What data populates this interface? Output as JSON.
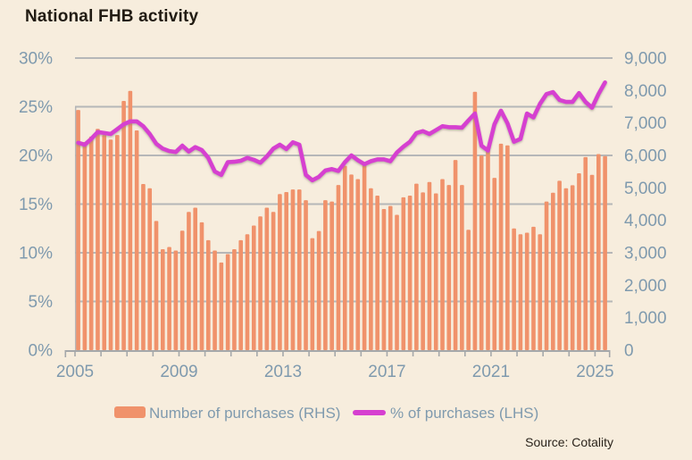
{
  "title": "National FHB activity",
  "source": "Source: Cotality",
  "colors": {
    "background": "#F7EDDD",
    "bar": "#F0926B",
    "line": "#D63FD0",
    "axis_text": "#7F9AAE",
    "grid": "#B0B2B4",
    "axis_line": "#A5A8AA",
    "title_text": "#211B12",
    "source_text": "#2B241C"
  },
  "legend": {
    "items": [
      {
        "label": "Number of purchases (RHS)",
        "swatch": "bar"
      },
      {
        "label": "% of purchases (LHS)",
        "swatch": "line"
      }
    ]
  },
  "chart_data": {
    "type": "combo-bar-line",
    "title": "National FHB activity",
    "grid": true,
    "legend_position": "bottom",
    "categories": [
      "2005Q1",
      "2005Q2",
      "2005Q3",
      "2005Q4",
      "2006Q1",
      "2006Q2",
      "2006Q3",
      "2006Q4",
      "2007Q1",
      "2007Q2",
      "2007Q3",
      "2007Q4",
      "2008Q1",
      "2008Q2",
      "2008Q3",
      "2008Q4",
      "2009Q1",
      "2009Q2",
      "2009Q3",
      "2009Q4",
      "2010Q1",
      "2010Q2",
      "2010Q3",
      "2010Q4",
      "2011Q1",
      "2011Q2",
      "2011Q3",
      "2011Q4",
      "2012Q1",
      "2012Q2",
      "2012Q3",
      "2012Q4",
      "2013Q1",
      "2013Q2",
      "2013Q3",
      "2013Q4",
      "2014Q1",
      "2014Q2",
      "2014Q3",
      "2014Q4",
      "2015Q1",
      "2015Q2",
      "2015Q3",
      "2015Q4",
      "2016Q1",
      "2016Q2",
      "2016Q3",
      "2016Q4",
      "2017Q1",
      "2017Q2",
      "2017Q3",
      "2017Q4",
      "2018Q1",
      "2018Q2",
      "2018Q3",
      "2018Q4",
      "2019Q1",
      "2019Q2",
      "2019Q3",
      "2019Q4",
      "2020Q1",
      "2020Q2",
      "2020Q3",
      "2020Q4",
      "2021Q1",
      "2021Q2",
      "2021Q3",
      "2021Q4",
      "2022Q1",
      "2022Q2",
      "2022Q3",
      "2022Q4",
      "2023Q1",
      "2023Q2",
      "2023Q3",
      "2023Q4",
      "2024Q1",
      "2024Q2",
      "2024Q3",
      "2024Q4",
      "2025Q1",
      "2025Q2"
    ],
    "series": [
      {
        "name": "Number of purchases (RHS)",
        "type": "bar",
        "axis": "right",
        "values": [
          7400,
          6410,
          6580,
          6820,
          6630,
          6490,
          6630,
          7680,
          7990,
          6770,
          5120,
          4990,
          3980,
          3110,
          3180,
          3070,
          3680,
          4260,
          4390,
          3940,
          3390,
          3070,
          2700,
          2960,
          3110,
          3390,
          3570,
          3840,
          4120,
          4390,
          4260,
          4810,
          4870,
          4950,
          4950,
          4620,
          3450,
          3670,
          4620,
          4580,
          5090,
          5680,
          5410,
          5270,
          5730,
          4990,
          4760,
          4350,
          4440,
          4170,
          4710,
          4760,
          5130,
          4860,
          5180,
          4830,
          5270,
          5090,
          5860,
          5090,
          3710,
          7960,
          6000,
          6180,
          5310,
          6360,
          6310,
          3750,
          3570,
          3620,
          3800,
          3570,
          4580,
          4850,
          5220,
          4990,
          5080,
          5450,
          5950,
          5400,
          6040,
          5980
        ]
      },
      {
        "name": "% of purchases (LHS)",
        "type": "line",
        "axis": "left",
        "values": [
          21.3,
          21.1,
          21.7,
          22.4,
          22.3,
          22.2,
          22.7,
          23.2,
          23.5,
          23.5,
          23.0,
          22.2,
          21.2,
          20.7,
          20.45,
          20.35,
          21.0,
          20.4,
          20.85,
          20.55,
          19.75,
          18.35,
          18.0,
          19.3,
          19.35,
          19.45,
          19.75,
          19.55,
          19.25,
          19.9,
          20.7,
          21.1,
          20.65,
          21.35,
          21.1,
          18.0,
          17.45,
          17.8,
          18.45,
          18.6,
          18.4,
          19.3,
          20.0,
          19.5,
          19.1,
          19.4,
          19.6,
          19.6,
          19.4,
          20.3,
          20.9,
          21.4,
          22.3,
          22.5,
          22.2,
          22.6,
          23.0,
          22.9,
          22.9,
          22.85,
          23.6,
          24.3,
          21.0,
          20.5,
          23.2,
          24.6,
          23.3,
          21.4,
          21.7,
          24.3,
          23.9,
          25.3,
          26.3,
          26.5,
          25.7,
          25.5,
          25.5,
          26.4,
          25.5,
          24.9,
          26.3,
          27.5
        ]
      }
    ],
    "left_axis": {
      "min": 0,
      "max": 30,
      "tick_labels": [
        "0%",
        "5%",
        "10%",
        "15%",
        "20%",
        "25%",
        "30%"
      ]
    },
    "right_axis": {
      "min": 0,
      "max": 9000,
      "tick_labels": [
        "0",
        "1,000",
        "2,000",
        "3,000",
        "4,000",
        "5,000",
        "6,000",
        "7,000",
        "8,000",
        "9,000"
      ]
    },
    "x_axis": {
      "tick_years": [
        2005,
        2006,
        2007,
        2008,
        2009,
        2010,
        2011,
        2012,
        2013,
        2014,
        2015,
        2016,
        2017,
        2018,
        2019,
        2020,
        2021,
        2022,
        2023,
        2024,
        2025
      ],
      "year_labels": [
        "2005",
        "2009",
        "2013",
        "2017",
        "2021",
        "2025"
      ]
    }
  }
}
